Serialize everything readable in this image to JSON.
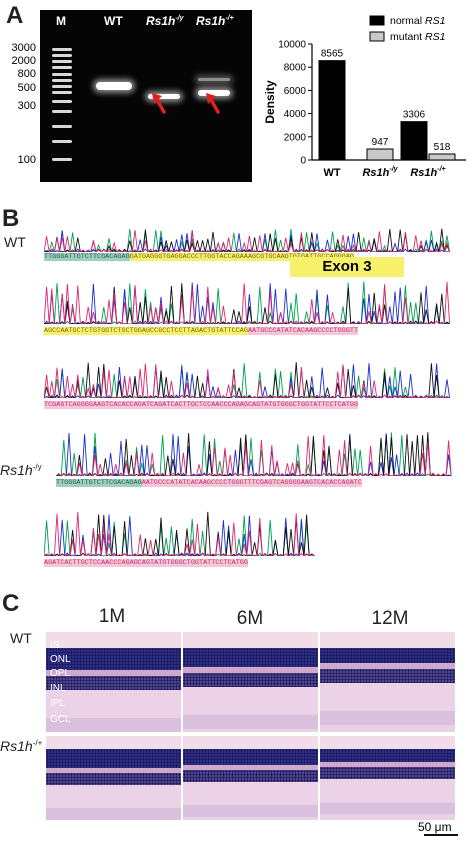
{
  "panels": {
    "a": "A",
    "b": "B",
    "c": "C"
  },
  "gel": {
    "lanes": [
      "M",
      "WT",
      "Rs1h",
      "Rs1h"
    ],
    "lane_superscripts": [
      "",
      "",
      "-/y",
      "-/+"
    ],
    "ladder": [
      "3000",
      "2000",
      "800",
      "500",
      "300",
      "100"
    ]
  },
  "chart_data": {
    "type": "bar",
    "categories": [
      "WT",
      "Rs1h-/y",
      "Rs1h-/+"
    ],
    "series": [
      {
        "name": "normal RS1",
        "values": [
          8565,
          null,
          3306
        ],
        "color": "#000000"
      },
      {
        "name": "mutant RS1",
        "values": [
          null,
          947,
          518
        ],
        "color": "#c8c8c8"
      }
    ],
    "data_labels": [
      "8565",
      "947",
      "3306",
      "518"
    ],
    "ylabel": "Density",
    "ylim": [
      0,
      10000
    ],
    "yticks": [
      "0",
      "2000",
      "4000",
      "6000",
      "8000",
      "10000"
    ],
    "legend": [
      "normal RS1",
      "mutant RS1"
    ],
    "legend_placement": "top-right",
    "grid": false
  },
  "sequencing": {
    "wt_label": "WT",
    "mut_label": "Rs1h",
    "mut_sup": "-/y",
    "exon_label": "Exon 3",
    "seq_rows": [
      {
        "green": "TTGGGATTGTCTTCGACAGAG",
        "yellow": "GATGAGGGTGAGGACCCTTGGTACCAGAAAGCGTGCAAGTGTGATTGCCAGGGAG",
        "pink": ""
      },
      {
        "green": "",
        "yellow": "AGCCAATGCTCTGTGGTCTGCTGGAGCCGCCTCCTTAGACTGTATTCCAG",
        "pink": "AATGCCCATATCACAAGCCCCTGGGTT"
      },
      {
        "green": "",
        "yellow": "",
        "pink": "TCGAGTCAGGGGAAGTCACACCAGATCAGATCACTTGCTCCAACCCAGAGCAGTATGTGGGCTGGTATTCCTCATGG"
      },
      {
        "green": "TTGGGATTGTCTTCGACAGAG",
        "yellow": "",
        "pink": "AATGCCCATATCACAAGCCCCTGGGTTTCGAGTCAGGGGAAGTCACACCAGATC"
      },
      {
        "green": "",
        "yellow": "",
        "pink": "AGATCACTTGCTCCAACCCAGAGCAGTATGTGGGCTGGTATTCCTCATGG"
      }
    ]
  },
  "histology": {
    "ages": [
      "1M",
      "6M",
      "12M"
    ],
    "wt_label": "WT",
    "mut_label": "Rs1h",
    "mut_sup": "-/+",
    "layers": [
      "IS",
      "ONL",
      "OPL",
      "INL",
      "IPL",
      "GCL"
    ],
    "scale_label": "50 μm"
  }
}
